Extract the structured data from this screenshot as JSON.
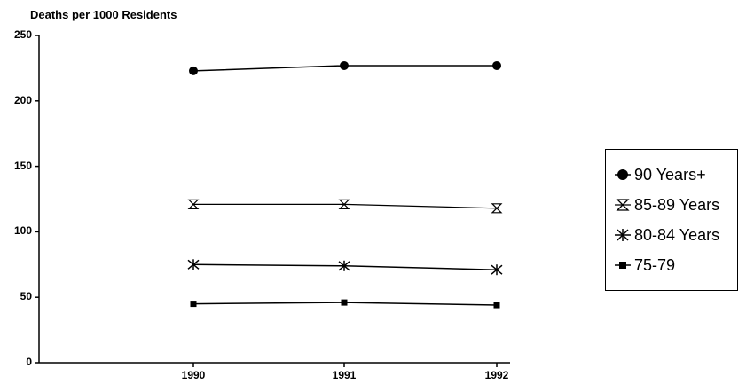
{
  "chart_data": {
    "type": "line",
    "ylabel": "Deaths per 1000 Residents",
    "xlabel": "",
    "x": [
      "1990",
      "1991",
      "1992"
    ],
    "ylim": [
      0,
      250
    ],
    "yticks": [
      "0",
      "50",
      "100",
      "150",
      "200",
      "250"
    ],
    "grid": false,
    "legend_position": "right",
    "series": [
      {
        "name": "90 Years+",
        "marker": "filled-circle",
        "values": [
          223,
          227,
          227
        ]
      },
      {
        "name": "85-89 Years",
        "marker": "hourglass",
        "values": [
          121,
          121,
          118
        ]
      },
      {
        "name": "80-84 Years",
        "marker": "asterisk",
        "values": [
          75,
          74,
          71
        ]
      },
      {
        "name": "75-79",
        "marker": "filled-square",
        "values": [
          45,
          46,
          44
        ]
      }
    ]
  }
}
